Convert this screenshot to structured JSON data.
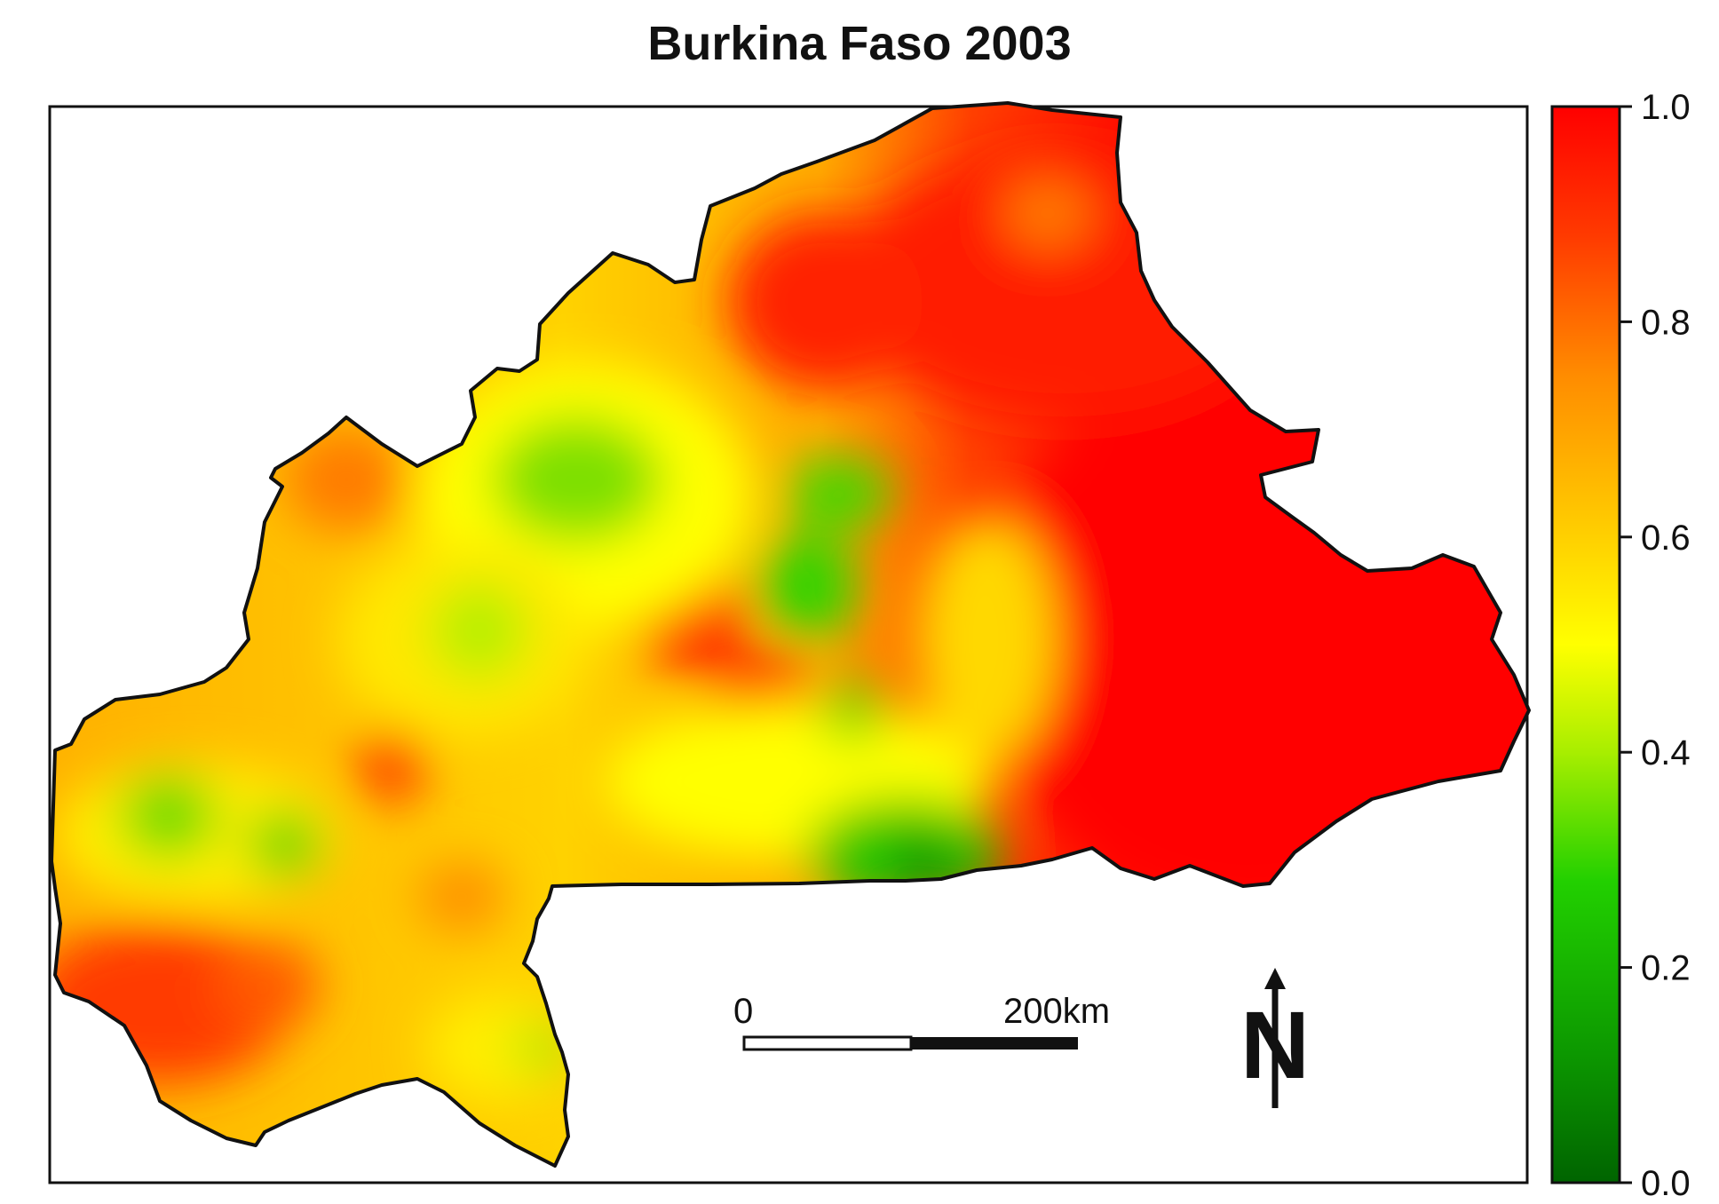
{
  "title": "Burkina Faso 2003",
  "legend": {
    "ticks": [
      "1.0",
      "0.8",
      "0.6",
      "0.4",
      "0.2",
      "0.0"
    ],
    "colors": [
      "#ff0000",
      "#ff8c00",
      "#ffd000",
      "#ffff00",
      "#c8f000",
      "#22d000",
      "#006400"
    ]
  },
  "scale_bar": {
    "start_label": "0",
    "end_label": "200km"
  },
  "north_arrow": {
    "label": "N",
    "icon": "north-arrow-icon"
  },
  "colors": {
    "frame": "#111111",
    "high": "#ff0000",
    "mid": "#ffff00",
    "low": "#006400"
  }
}
